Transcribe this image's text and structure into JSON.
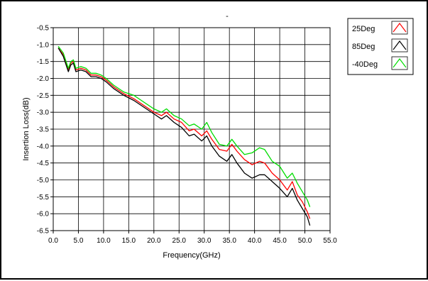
{
  "chart_data": {
    "type": "line",
    "title": "-",
    "xlabel": "Frequency(GHz)",
    "ylabel": "Insertion Loss(dB)",
    "xlim": [
      0,
      55
    ],
    "ylim": [
      -6.5,
      -0.5
    ],
    "x_ticks": [
      "0.0",
      "5.0",
      "10.0",
      "15.0",
      "20.0",
      "25.0",
      "30.0",
      "35.0",
      "40.0",
      "45.0",
      "50.0",
      "55.0"
    ],
    "y_ticks": [
      "-0.5",
      "-1.0",
      "-1.5",
      "-2.0",
      "-2.5",
      "-3.0",
      "-3.5",
      "-4.0",
      "-4.5",
      "-5.0",
      "-5.5",
      "-6.0",
      "-6.5"
    ],
    "grid": true,
    "legend_position": "top-right-outside",
    "series": [
      {
        "name": "25Deg",
        "color": "#ff0000",
        "x": [
          1.0,
          2.0,
          3.0,
          3.5,
          4.0,
          4.5,
          5.5,
          6.5,
          7.5,
          8.5,
          9.5,
          10.5,
          12.0,
          14.0,
          16.0,
          18.0,
          20.0,
          21.5,
          22.5,
          24.0,
          25.5,
          27.0,
          28.0,
          29.5,
          30.5,
          31.5,
          33.0,
          34.5,
          35.5,
          36.5,
          38.0,
          39.5,
          41.0,
          42.0,
          43.5,
          45.0,
          46.5,
          47.5,
          48.5,
          49.5,
          50.5,
          51.0
        ],
        "y": [
          -1.1,
          -1.3,
          -1.75,
          -1.55,
          -1.5,
          -1.75,
          -1.7,
          -1.75,
          -1.9,
          -1.9,
          -1.95,
          -2.05,
          -2.25,
          -2.45,
          -2.6,
          -2.8,
          -3.0,
          -3.1,
          -3.0,
          -3.2,
          -3.3,
          -3.55,
          -3.5,
          -3.7,
          -3.55,
          -3.8,
          -4.1,
          -4.15,
          -3.95,
          -4.15,
          -4.4,
          -4.55,
          -4.45,
          -4.5,
          -4.8,
          -5.0,
          -5.3,
          -5.05,
          -5.45,
          -5.65,
          -5.95,
          -6.15
        ]
      },
      {
        "name": "85Deg",
        "color": "#000000",
        "x": [
          1.0,
          2.0,
          3.0,
          3.5,
          4.0,
          4.5,
          5.5,
          6.5,
          7.5,
          8.5,
          9.5,
          10.5,
          12.0,
          14.0,
          16.0,
          18.0,
          20.0,
          21.5,
          22.5,
          24.0,
          25.5,
          27.0,
          28.0,
          29.5,
          30.5,
          31.5,
          33.0,
          34.5,
          35.5,
          36.5,
          38.0,
          39.5,
          41.0,
          42.0,
          43.5,
          45.0,
          46.5,
          47.5,
          48.5,
          49.5,
          50.5,
          51.0
        ],
        "y": [
          -1.1,
          -1.35,
          -1.8,
          -1.6,
          -1.55,
          -1.8,
          -1.75,
          -1.8,
          -1.95,
          -1.95,
          -2.0,
          -2.1,
          -2.3,
          -2.5,
          -2.65,
          -2.85,
          -3.05,
          -3.2,
          -3.1,
          -3.3,
          -3.45,
          -3.7,
          -3.65,
          -3.85,
          -3.7,
          -4.0,
          -4.3,
          -4.45,
          -4.25,
          -4.5,
          -4.8,
          -4.95,
          -4.85,
          -4.85,
          -5.05,
          -5.25,
          -5.5,
          -5.25,
          -5.6,
          -5.85,
          -6.1,
          -6.35
        ]
      },
      {
        "name": "-40Deg",
        "color": "#00dd00",
        "x": [
          1.0,
          2.0,
          3.0,
          3.5,
          4.0,
          4.5,
          5.5,
          6.5,
          7.5,
          8.5,
          9.5,
          10.5,
          12.0,
          14.0,
          16.0,
          18.0,
          20.0,
          21.5,
          22.5,
          24.0,
          25.5,
          27.0,
          28.0,
          29.5,
          30.5,
          31.5,
          33.0,
          34.5,
          35.5,
          36.5,
          38.0,
          39.5,
          41.0,
          42.0,
          43.5,
          45.0,
          46.5,
          47.5,
          48.5,
          49.5,
          50.5,
          51.0
        ],
        "y": [
          -1.05,
          -1.25,
          -1.7,
          -1.5,
          -1.45,
          -1.7,
          -1.65,
          -1.7,
          -1.85,
          -1.85,
          -1.9,
          -2.0,
          -2.2,
          -2.4,
          -2.5,
          -2.7,
          -2.9,
          -3.0,
          -2.9,
          -3.1,
          -3.2,
          -3.4,
          -3.35,
          -3.5,
          -3.3,
          -3.6,
          -3.95,
          -4.0,
          -3.8,
          -4.0,
          -4.25,
          -4.2,
          -4.05,
          -4.1,
          -4.45,
          -4.6,
          -4.95,
          -4.8,
          -5.1,
          -5.35,
          -5.6,
          -5.8
        ]
      }
    ]
  }
}
